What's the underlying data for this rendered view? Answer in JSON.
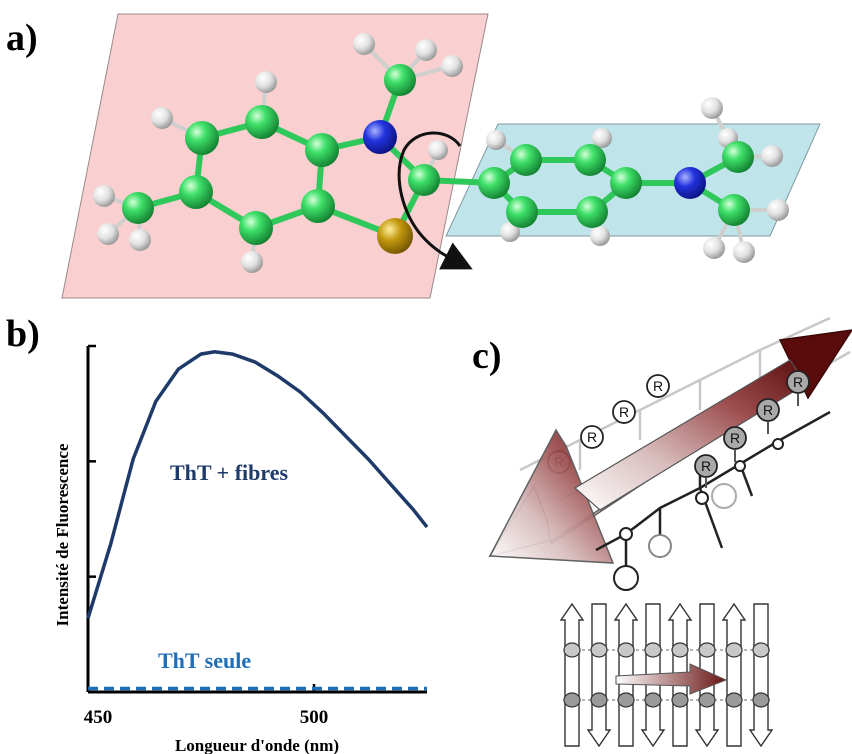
{
  "panels": {
    "a": {
      "label": "a)"
    },
    "b": {
      "label": "b)"
    },
    "c": {
      "label": "c)",
      "residue_label": "R"
    }
  },
  "colors": {
    "plane_left": "#f9cfd0",
    "plane_right": "#bfe4ea",
    "carbon": "#2fd25a",
    "hydrogen": "#e4e4e4",
    "nitrogen": "#1f2fd0",
    "sulfur": "#b58f0c",
    "curve_fibres": "#1e3a68",
    "curve_seule": "#1f6fb8",
    "arrow_dark": "#6a1414"
  },
  "chart_data": {
    "type": "line",
    "xlabel": "Longueur d'onde (nm)",
    "ylabel": "Intensité de Fluorescence",
    "xlim": [
      450,
      525
    ],
    "ylim": [
      0,
      3
    ],
    "xticks": [
      450,
      500
    ],
    "yticks": [
      1,
      2,
      3
    ],
    "series": [
      {
        "name": "ThT + fibres",
        "style": "solid",
        "x": [
          450,
          455,
          460,
          465,
          470,
          475,
          478,
          482,
          487,
          492,
          497,
          502,
          507,
          512,
          517,
          522,
          525
        ],
        "y": [
          0.64,
          1.28,
          2.02,
          2.52,
          2.8,
          2.93,
          2.95,
          2.93,
          2.86,
          2.74,
          2.6,
          2.42,
          2.22,
          2.02,
          1.8,
          1.58,
          1.43
        ]
      },
      {
        "name": "ThT seule",
        "style": "dashed",
        "x": [
          450,
          525
        ],
        "y": [
          0.03,
          0.03
        ]
      }
    ]
  }
}
